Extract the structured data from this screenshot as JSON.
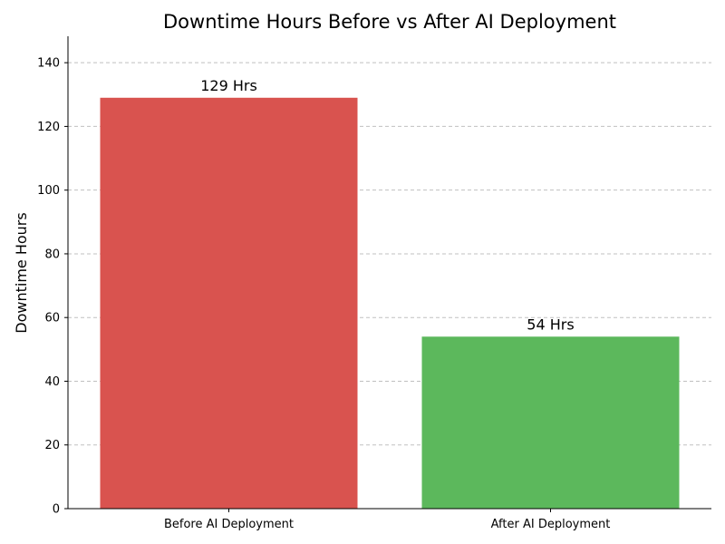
{
  "chart_data": {
    "type": "bar",
    "title": "Downtime Hours Before vs After AI Deployment",
    "xlabel": "",
    "ylabel": "Downtime Hours",
    "categories": [
      "Before AI Deployment",
      "After AI Deployment"
    ],
    "values": [
      129,
      54
    ],
    "data_labels": [
      "129 Hrs",
      "54 Hrs"
    ],
    "colors": [
      "#d9534f",
      "#5cb85c"
    ],
    "ylim": [
      0,
      148.3
    ],
    "yticks": [
      0,
      20,
      40,
      60,
      80,
      100,
      120,
      140
    ],
    "grid": "y dashed",
    "legend": "none"
  }
}
